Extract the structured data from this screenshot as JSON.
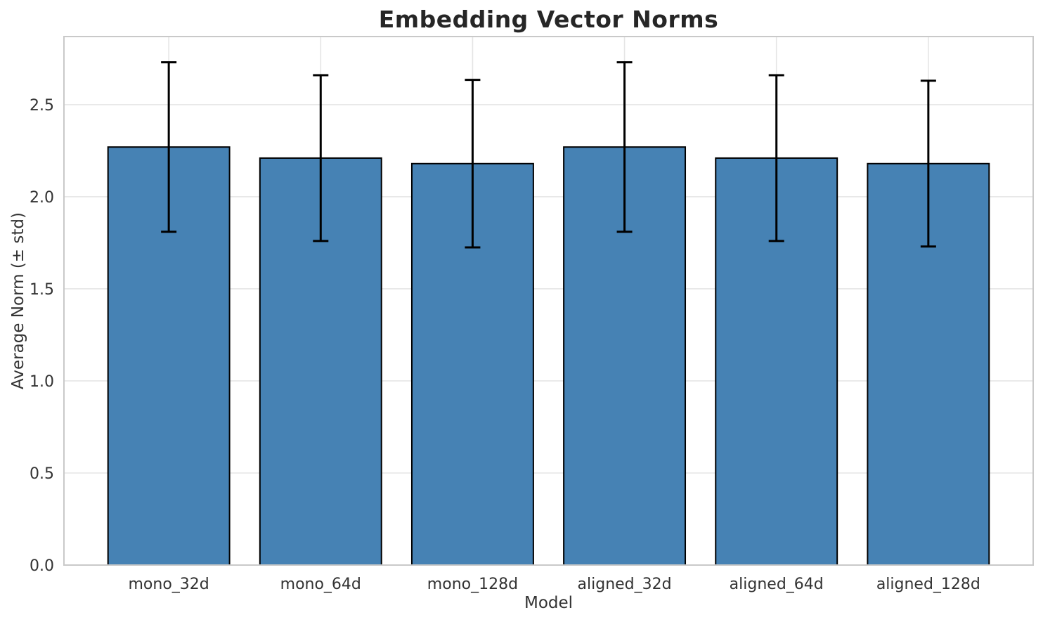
{
  "chart_data": {
    "type": "bar",
    "title": "Embedding Vector Norms",
    "xlabel": "Model",
    "ylabel": "Average Norm (± std)",
    "categories": [
      "mono_32d",
      "mono_64d",
      "mono_128d",
      "aligned_32d",
      "aligned_64d",
      "aligned_128d"
    ],
    "series": [
      {
        "name": "Average Norm",
        "values": [
          2.27,
          2.21,
          2.18,
          2.27,
          2.21,
          2.18
        ],
        "errors": [
          0.46,
          0.45,
          0.455,
          0.46,
          0.45,
          0.45
        ]
      }
    ],
    "ylim": [
      0,
      2.87
    ],
    "xlim": [
      -0.69,
      5.69
    ],
    "yticks": [
      0.0,
      0.5,
      1.0,
      1.5,
      2.0,
      2.5
    ],
    "ytick_labels": [
      "0.0",
      "0.5",
      "1.0",
      "1.5",
      "2.0",
      "2.5"
    ],
    "grid": true,
    "legend": "none",
    "bar_width_units": 0.8,
    "colors": {
      "bar_fill": "#4682b4",
      "bar_edge": "#000000",
      "error_bar": "#000000",
      "grid": "#e5e5e5",
      "spine": "#c9c9c9",
      "background": "#ffffff",
      "text": "#333333",
      "title": "#262626"
    }
  }
}
